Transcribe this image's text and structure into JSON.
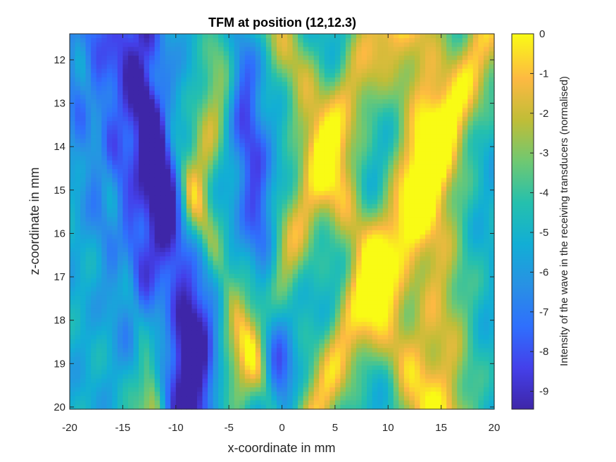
{
  "chart_data": {
    "type": "heatmap",
    "title": "TFM at position (12,12.3)",
    "xlabel": "x-coordinate in mm",
    "ylabel": "z-coordinate in mm",
    "colorbar_label": "Intensity of the wave in the receiving transducers (normalised)",
    "colormap": "parula",
    "xlim": [
      -20,
      20
    ],
    "ylim": [
      20.05,
      11.4
    ],
    "y_direction": "reversed",
    "clim": [
      -9.45,
      0
    ],
    "x_ticks": [
      "-20",
      "-15",
      "-10",
      "-5",
      "0",
      "5",
      "10",
      "15",
      "20"
    ],
    "y_ticks": [
      "12",
      "13",
      "14",
      "15",
      "16",
      "17",
      "18",
      "19",
      "20"
    ],
    "colorbar_ticks": [
      "0",
      "-1",
      "-2",
      "-3",
      "-4",
      "-5",
      "-6",
      "-7",
      "-8",
      "-9"
    ],
    "grid": "off",
    "bands": [
      {
        "x_at_z12": -19,
        "slope": 1.0,
        "width": 2.2,
        "value": -8.5
      },
      {
        "x_at_z12": -13,
        "slope": 0.6,
        "width": 1.8,
        "value": -8.0
      },
      {
        "x_at_z12": -4,
        "slope": 0.5,
        "width": 1.6,
        "value": -8.3
      },
      {
        "x_at_z12": -14,
        "slope": 0.9,
        "width": 2.5,
        "value": -8.6
      },
      {
        "x_at_z12": -5.5,
        "slope": -0.9,
        "width": 1.8,
        "value": -2.3
      },
      {
        "x_at_z12": 8,
        "slope": -1.7,
        "width": 2.6,
        "value": -1.7
      },
      {
        "x_at_z12": 1,
        "slope": 1.5,
        "width": 2.2,
        "value": -2.2
      },
      {
        "x_at_z12": 18.5,
        "slope": -1.9,
        "width": 2.6,
        "value": -1.0
      },
      {
        "x_at_z12": 13,
        "slope": 0.3,
        "width": 3.0,
        "value": -1.8
      },
      {
        "x_at_z12": -19,
        "slope": 0.9,
        "width": 1.0,
        "value": -2.8
      },
      {
        "x_at_z12": -13,
        "slope": 1.5,
        "width": 1.1,
        "value": -3.0
      }
    ],
    "base_value": -5.3
  }
}
